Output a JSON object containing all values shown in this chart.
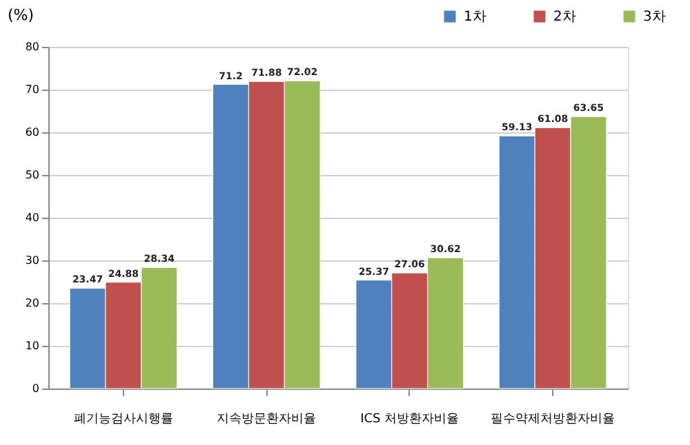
{
  "chart_data": {
    "type": "bar",
    "ylabel": "(%)",
    "categories": [
      "폐기능검사시행률",
      "지속방문환자비율",
      "ICS 처방환자비율",
      "필수약제처방환자비율"
    ],
    "series": [
      {
        "name": "1차",
        "color": "#4f81bd",
        "values": [
          23.47,
          71.2,
          25.37,
          59.13
        ]
      },
      {
        "name": "2차",
        "color": "#c0504d",
        "values": [
          24.88,
          71.88,
          27.06,
          61.08
        ]
      },
      {
        "name": "3차",
        "color": "#9bbb59",
        "values": [
          28.34,
          72.02,
          30.62,
          63.65
        ]
      }
    ],
    "ylim": [
      0,
      80
    ],
    "yticks": [
      0,
      10,
      20,
      30,
      40,
      50,
      60,
      70,
      80
    ],
    "grid": "y",
    "legend": "top right",
    "data_labels": true
  }
}
